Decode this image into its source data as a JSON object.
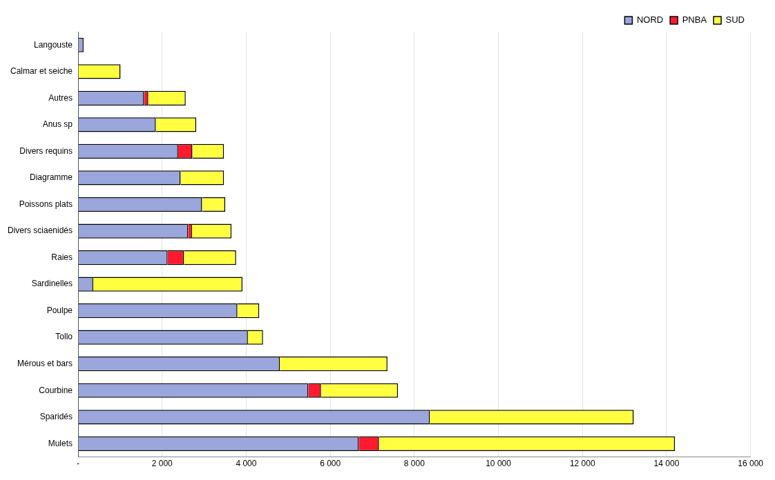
{
  "chart_data": {
    "type": "bar",
    "orientation": "horizontal",
    "stacked": true,
    "categories": [
      "Langouste",
      "Calmar et seiche",
      "Autres",
      "Anus sp",
      "Divers requins",
      "Diagramme",
      "Poissons plats",
      "Divers sciaenidés",
      "Raies",
      "Sardinelles",
      "Poulpe",
      "Tollo",
      "Mérous et bars",
      "Courbine",
      "Sparidés",
      "Mulets"
    ],
    "series": [
      {
        "name": "NORD",
        "color": "#9aa6dc",
        "values": [
          130,
          null,
          1570,
          1850,
          2380,
          2440,
          2950,
          2620,
          2130,
          360,
          3790,
          4040,
          4800,
          5480,
          8370,
          6680
        ]
      },
      {
        "name": "PNBA",
        "color": "#ff1a2e",
        "values": [
          null,
          null,
          100,
          null,
          340,
          null,
          null,
          90,
          390,
          null,
          null,
          null,
          null,
          300,
          null,
          480
        ]
      },
      {
        "name": "SUD",
        "color": "#ffff40",
        "values": [
          null,
          1010,
          890,
          960,
          750,
          1030,
          550,
          940,
          1240,
          3550,
          520,
          360,
          2560,
          1830,
          4850,
          7040
        ]
      }
    ],
    "xlim": [
      0,
      16000
    ],
    "xticks": [
      {
        "value": 0,
        "label": "-"
      },
      {
        "value": 2000,
        "label": "2 000"
      },
      {
        "value": 4000,
        "label": "4 000"
      },
      {
        "value": 6000,
        "label": "6 000"
      },
      {
        "value": 8000,
        "label": "8 000"
      },
      {
        "value": 10000,
        "label": "10 000"
      },
      {
        "value": 12000,
        "label": "12 000"
      },
      {
        "value": 14000,
        "label": "14 000"
      },
      {
        "value": 16000,
        "label": "16 000"
      }
    ],
    "grid": "x",
    "legend": "top right"
  }
}
